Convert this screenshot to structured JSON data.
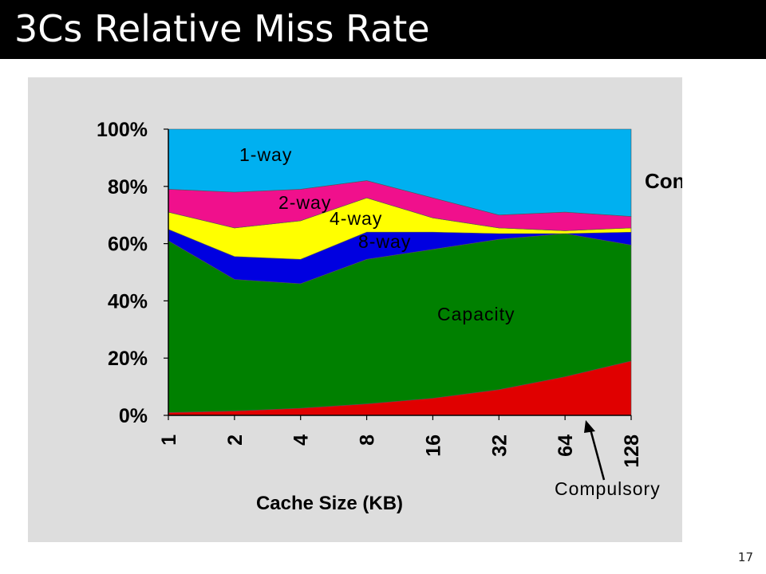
{
  "slide": {
    "title": "3Cs Relative Miss Rate",
    "page_number": "17"
  },
  "chart_data": {
    "type": "area",
    "stacked": true,
    "categories": [
      "1",
      "2",
      "4",
      "8",
      "16",
      "32",
      "64",
      "128"
    ],
    "xlabel": "Cache Size (KB)",
    "ylabel": "",
    "ylim": [
      0,
      100
    ],
    "yticks": [
      "0%",
      "20%",
      "40%",
      "60%",
      "80%",
      "100%"
    ],
    "series": [
      {
        "name": "Compulsory",
        "color": "#e00000",
        "values": [
          1,
          1.5,
          2.5,
          4,
          6,
          9,
          13.5,
          19
        ]
      },
      {
        "name": "Capacity",
        "color": "#008000",
        "values": [
          60,
          46,
          43.5,
          50.5,
          52,
          52.5,
          50,
          40.5
        ]
      },
      {
        "name": "8-way",
        "color": "#0000e0",
        "values": [
          4,
          8,
          8.5,
          9.5,
          6,
          2,
          0,
          4.5
        ]
      },
      {
        "name": "4-way",
        "color": "#ffff00",
        "values": [
          6,
          10,
          13.5,
          12,
          5,
          2,
          1,
          1.5
        ]
      },
      {
        "name": "2-way",
        "color": "#f0108c",
        "values": [
          8,
          12.5,
          11,
          6,
          7,
          4.5,
          6.5,
          4
        ]
      },
      {
        "name": "1-way",
        "color": "#00b0f0",
        "values": [
          21,
          22,
          21,
          18,
          24,
          30,
          29,
          30.5
        ]
      }
    ],
    "annotations": [
      "Conflict"
    ],
    "grid": false,
    "legend": "none"
  }
}
